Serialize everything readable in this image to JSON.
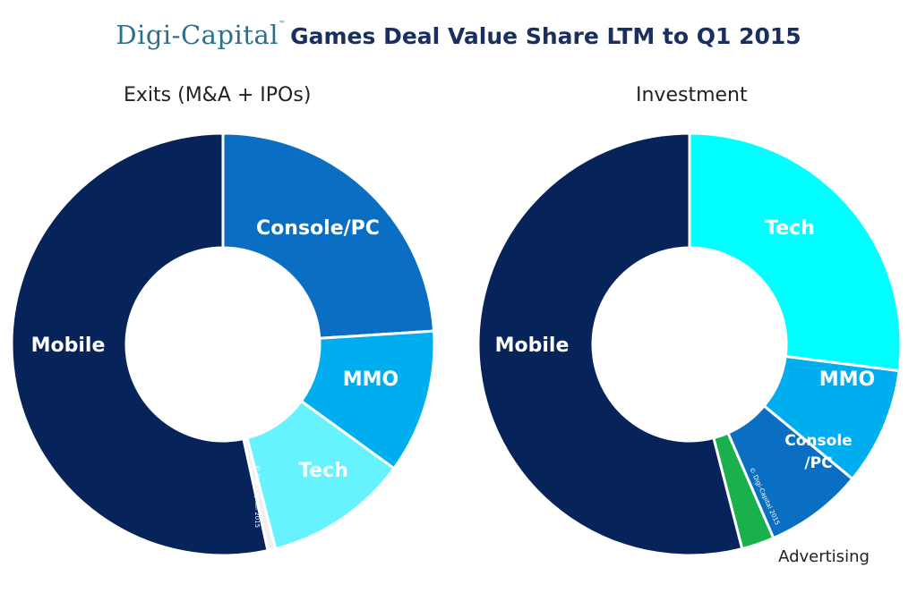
{
  "header": {
    "brand": "Digi-Capital",
    "trademark": "™",
    "title": "Games Deal Value Share LTM to Q1 2015"
  },
  "chart_data": [
    {
      "type": "pie",
      "variant": "donut",
      "title": "Exits (M&A + IPOs)",
      "copyright": "© Digi-Capital 2015",
      "slices": [
        {
          "label": "Console/PC",
          "value": 24,
          "color": "#0a6fc2",
          "label_color": "#ffffff"
        },
        {
          "label": "MMO",
          "value": 11,
          "color": "#00aeef",
          "label_color": "#ffffff"
        },
        {
          "label": "Tech",
          "value": 11,
          "color": "#66f2ff",
          "label_color": "#0d1e45"
        },
        {
          "label": "",
          "value": 0.6,
          "color": "#f0f0f0",
          "label_color": "#ffffff"
        },
        {
          "label": "Mobile",
          "value": 53.4,
          "color": "#06235a",
          "label_color": "#ffffff"
        }
      ]
    },
    {
      "type": "pie",
      "variant": "donut",
      "title": "Investment",
      "copyright": "© Digi-Capital 2015",
      "slices": [
        {
          "label": "Tech",
          "value": 27,
          "color": "#00ffff",
          "label_color": "#0d1e45"
        },
        {
          "label": "MMO",
          "value": 9,
          "color": "#00aeef",
          "label_color": "#ffffff"
        },
        {
          "label": "Console/PC",
          "value": 7.5,
          "color": "#0a6fc2",
          "label_color": "#ffffff"
        },
        {
          "label": "Advertising",
          "value": 2.5,
          "color": "#1ab04c",
          "label_color": "#222222"
        },
        {
          "label": "Mobile",
          "value": 54,
          "color": "#06235a",
          "label_color": "#ffffff"
        }
      ]
    }
  ]
}
